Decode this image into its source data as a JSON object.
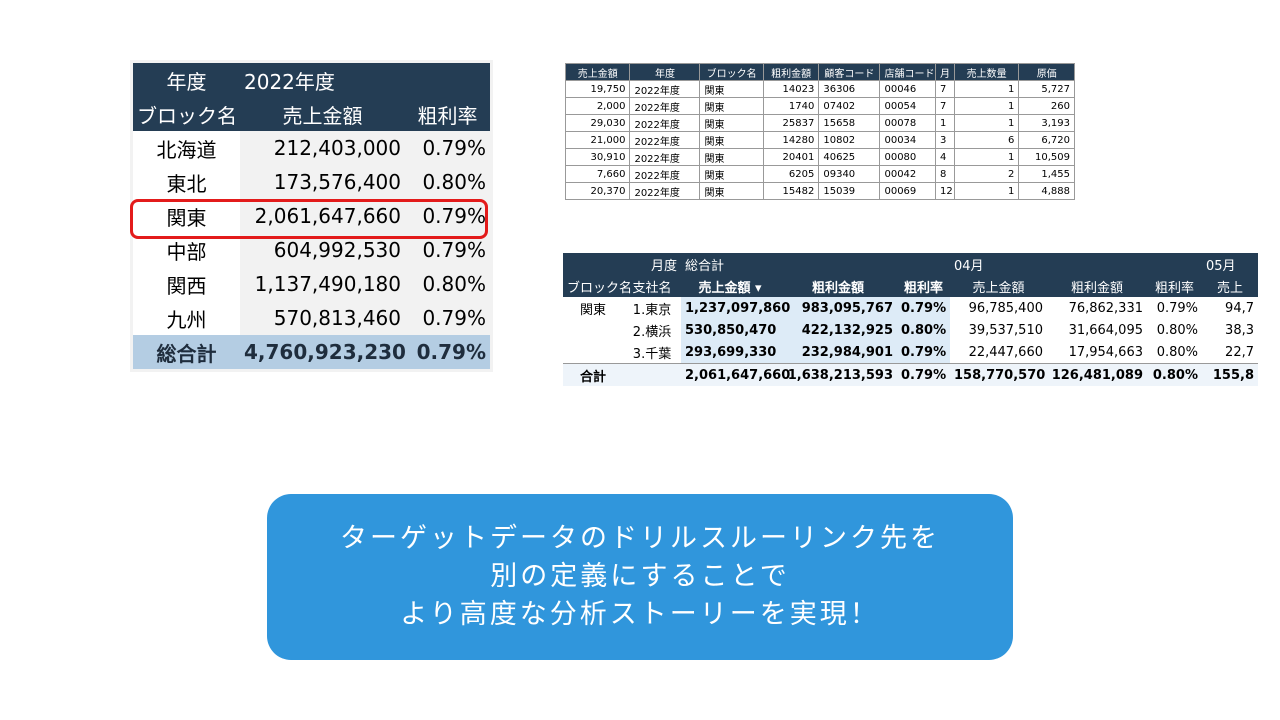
{
  "left_table": {
    "header": {
      "year_label": "年度",
      "year": "2022年度",
      "block_label": "ブロック名",
      "sales_label": "売上金額",
      "margin_label": "粗利率"
    },
    "rows": [
      [
        "北海道",
        "212,403,000",
        "0.79%"
      ],
      [
        "東北",
        "173,576,400",
        "0.80%"
      ],
      [
        "関東",
        "2,061,647,660",
        "0.79%"
      ],
      [
        "中部",
        "604,992,530",
        "0.79%"
      ],
      [
        "関西",
        "1,137,490,180",
        "0.80%"
      ],
      [
        "九州",
        "570,813,460",
        "0.79%"
      ]
    ],
    "total": [
      "総合計",
      "4,760,923,230",
      "0.79%"
    ]
  },
  "detail_table": {
    "columns": [
      "売上金額",
      "年度",
      "ブロック名",
      "粗利金額",
      "顧客コード",
      "店舗コード",
      "月",
      "売上数量",
      "原価"
    ],
    "rows": [
      [
        "19,750",
        "2022年度",
        "関東",
        "14023",
        "36306",
        "00046",
        "7",
        "1",
        "5,727"
      ],
      [
        "2,000",
        "2022年度",
        "関東",
        "1740",
        "07402",
        "00054",
        "7",
        "1",
        "260"
      ],
      [
        "29,030",
        "2022年度",
        "関東",
        "25837",
        "15658",
        "00078",
        "1",
        "1",
        "3,193"
      ],
      [
        "21,000",
        "2022年度",
        "関東",
        "14280",
        "10802",
        "00034",
        "3",
        "6",
        "6,720"
      ],
      [
        "30,910",
        "2022年度",
        "関東",
        "20401",
        "40625",
        "00080",
        "4",
        "1",
        "10,509"
      ],
      [
        "7,660",
        "2022年度",
        "関東",
        "6205",
        "09340",
        "00042",
        "8",
        "2",
        "1,455"
      ],
      [
        "20,370",
        "2022年度",
        "関東",
        "15482",
        "15039",
        "00069",
        "12",
        "1",
        "4,888"
      ]
    ]
  },
  "pivot_table": {
    "top": {
      "month_label": "月度",
      "total": "総合計",
      "m1": "04月",
      "m2": "05月"
    },
    "columns": [
      "ブロック名",
      "支社名",
      "売上金額 ▾",
      "粗利金額",
      "粗利率",
      "売上金額",
      "粗利金額",
      "粗利率",
      "売上"
    ],
    "rows": [
      {
        "block": "関東",
        "branch": "1.東京",
        "values": [
          "1,237,097,860",
          "983,095,767",
          "0.79%",
          "96,785,400",
          "76,862,331",
          "0.79%",
          "94,7"
        ]
      },
      {
        "branch": "2.横浜",
        "values": [
          "530,850,470",
          "422,132,925",
          "0.80%",
          "39,537,510",
          "31,664,095",
          "0.80%",
          "38,3"
        ]
      },
      {
        "branch": "3.千葉",
        "values": [
          "293,699,330",
          "232,984,901",
          "0.79%",
          "22,447,660",
          "17,954,663",
          "0.80%",
          "22,7"
        ]
      }
    ],
    "total": {
      "label": "合計",
      "values": [
        "2,061,647,660",
        "1,638,213,593",
        "0.79%",
        "158,770,570",
        "126,481,089",
        "0.80%",
        "155,8"
      ]
    }
  },
  "callout": {
    "lines": [
      "ターゲットデータのドリルスルーリンク先を",
      "別の定義にすることで",
      "より高度な分析ストーリーを実現！"
    ]
  }
}
